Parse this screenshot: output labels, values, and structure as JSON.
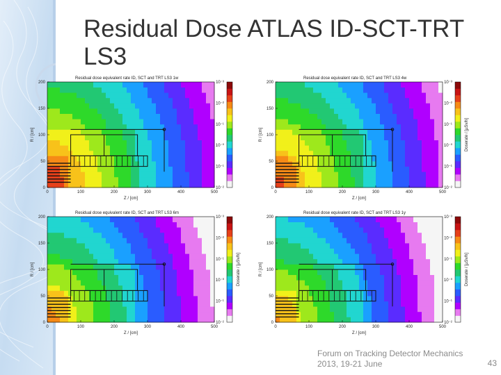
{
  "slide": {
    "title": "Residual Dose ATLAS ID-SCT-TRT LS3",
    "footer": [
      "Forum on Tracking Detector Mechanics",
      "2013, 19-21 June"
    ],
    "page_number": "43"
  },
  "chart_data": [
    {
      "type": "heatmap",
      "title": "Residual dose equivalent rate ID, SCT and TRT LS3 1w",
      "xlabel": "Z / [cm]",
      "ylabel": "R / [cm]",
      "colorbar_label": "",
      "xlim": [
        0,
        500
      ],
      "ylim": [
        0,
        200
      ],
      "xticks": [
        0,
        100,
        200,
        300,
        400,
        500
      ],
      "yticks": [
        0,
        50,
        100,
        150,
        200
      ],
      "colorbar_ticks": [
        "10⁻²",
        "10⁻¹",
        "10⁻⁰",
        "10⁻¹",
        "10⁻²",
        "10⁻³"
      ],
      "color_scale": "log",
      "level_offset": 0
    },
    {
      "type": "heatmap",
      "title": "Residual dose equivalent rate ID, SCT and TRT LS3 4w",
      "xlabel": "Z / [cm]",
      "ylabel": "R / [cm]",
      "colorbar_label": "Doserate / [µSv/h]",
      "xlim": [
        0,
        500
      ],
      "ylim": [
        0,
        200
      ],
      "xticks": [
        0,
        100,
        200,
        300,
        400,
        500
      ],
      "yticks": [
        0,
        50,
        100,
        150,
        200
      ],
      "colorbar_ticks": [
        "10⁻²",
        "10⁻¹",
        "10⁻⁰",
        "10⁻¹",
        "10⁻²",
        "10⁻³"
      ],
      "color_scale": "log",
      "level_offset": 0.3
    },
    {
      "type": "heatmap",
      "title": "Residual dose equivalent rate ID, SCT and TRT LS3 6m",
      "xlabel": "Z / [cm]",
      "ylabel": "R / [cm]",
      "colorbar_label": "Doserate / [µSv/h]",
      "xlim": [
        0,
        500
      ],
      "ylim": [
        0,
        200
      ],
      "xticks": [
        0,
        100,
        200,
        300,
        400,
        500
      ],
      "yticks": [
        0,
        50,
        100,
        150,
        200
      ],
      "colorbar_ticks": [
        "10⁻²",
        "10⁻¹",
        "10⁻⁰",
        "10⁻¹",
        "10⁻²",
        "10⁻³"
      ],
      "color_scale": "log",
      "level_offset": 0.9
    },
    {
      "type": "heatmap",
      "title": "Residual dose equivalent rate ID, SCT and TRT LS3 1y",
      "xlabel": "Z / [cm]",
      "ylabel": "R / [cm]",
      "colorbar_label": "Doserate / [µSv/h]",
      "xlim": [
        0,
        500
      ],
      "ylim": [
        0,
        200
      ],
      "xticks": [
        0,
        100,
        200,
        300,
        400,
        500
      ],
      "yticks": [
        0,
        50,
        100,
        150,
        200
      ],
      "colorbar_ticks": [
        "10⁻²",
        "10⁻¹",
        "10⁻⁰",
        "10⁻¹",
        "10⁻²",
        "10⁻³"
      ],
      "color_scale": "log",
      "level_offset": 1.1
    }
  ],
  "colors": {
    "title_text": "#333333",
    "footer_text": "#8a8a8a",
    "sidebar_light": "#dbe9f7",
    "sidebar_mid": "#a9c6e6",
    "colormap": [
      "#f5f5f5",
      "#e77af0",
      "#b000ff",
      "#5a2cff",
      "#2a5cff",
      "#1aa0ff",
      "#21d6d0",
      "#22c873",
      "#2ed92a",
      "#9ee81c",
      "#f1f01a",
      "#f8c21a",
      "#f68a16",
      "#e6401a",
      "#c81414",
      "#8c0a0a"
    ]
  }
}
